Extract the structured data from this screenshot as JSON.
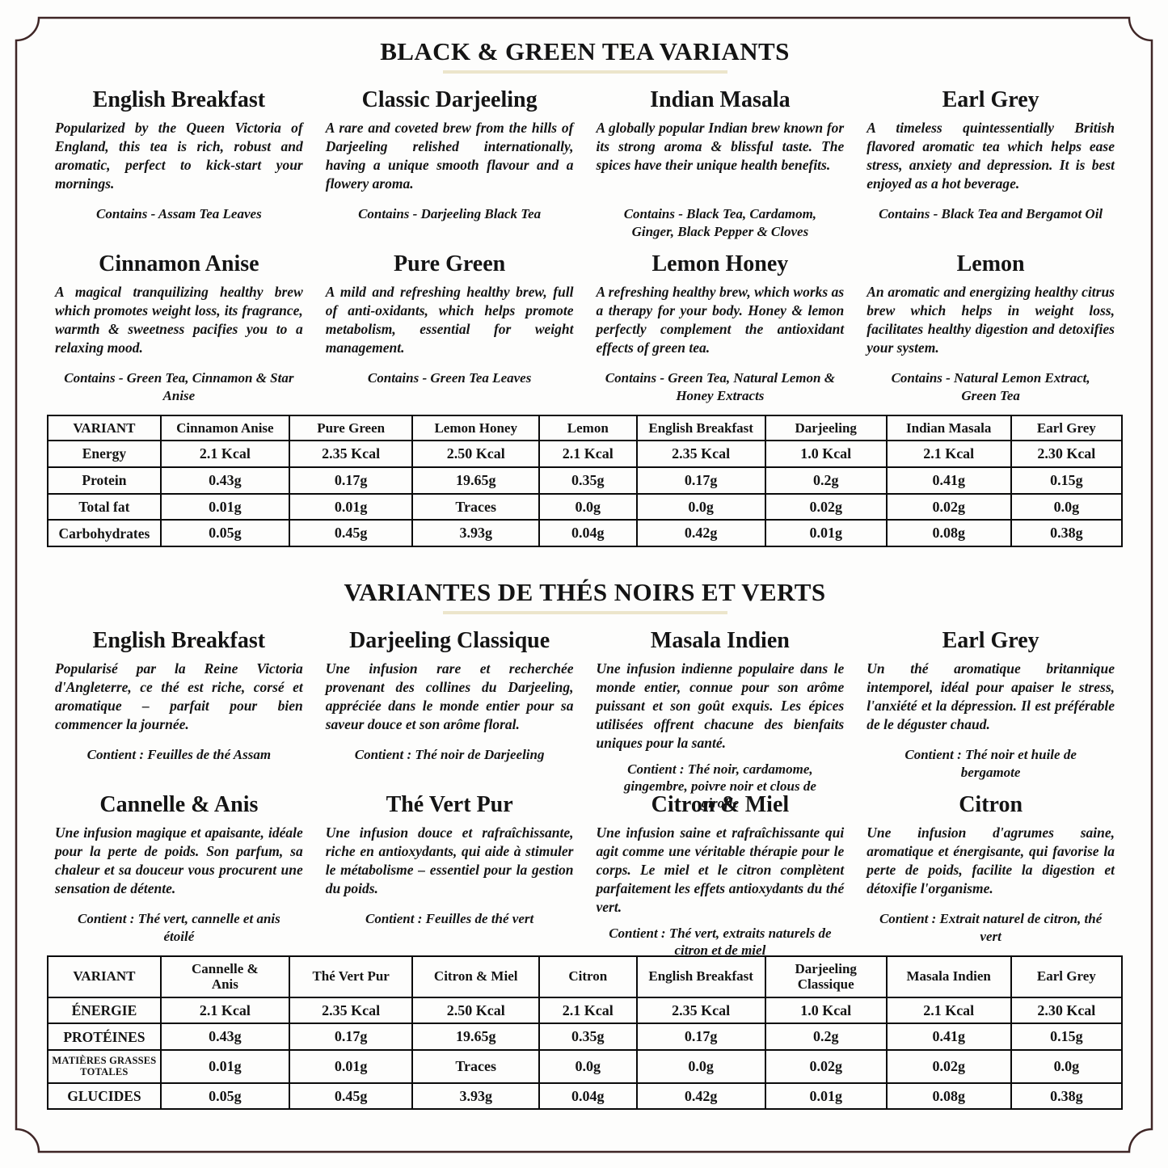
{
  "frame": {
    "border_color": "#3f2626",
    "underline_color": "#ece5cb"
  },
  "en": {
    "title": "BLACK & GREEN TEA VARIANTS",
    "teas": [
      {
        "name": "English Breakfast",
        "description": "Popularized by the Queen Victoria of England, this tea is rich, robust and aromatic, perfect to kick-start your mornings.",
        "contains": "Contains - Assam Tea Leaves"
      },
      {
        "name": "Classic Darjeeling",
        "description": "A rare and coveted brew from the hills of Darjeeling relished internationally, having a unique smooth flavour and a flowery aroma.",
        "contains": "Contains - Darjeeling Black Tea"
      },
      {
        "name": "Indian Masala",
        "description": "A globally popular Indian brew known for its strong aroma & blissful taste. The spices have their unique health benefits.",
        "contains": "Contains - Black Tea, Cardamom, Ginger, Black Pepper & Cloves"
      },
      {
        "name": "Earl Grey",
        "description": "A timeless quintessentially British flavored aromatic tea which helps ease stress, anxiety and depression. It is best enjoyed as a hot beverage.",
        "contains": "Contains - Black Tea and Bergamot Oil"
      },
      {
        "name": "Cinnamon Anise",
        "description": "A magical tranquilizing healthy brew which promotes weight loss, its fragrance, warmth & sweetness pacifies you to a relaxing mood.",
        "contains": "Contains - Green Tea, Cinnamon & Star Anise"
      },
      {
        "name": "Pure Green",
        "description": "A mild and refreshing healthy brew, full of anti-oxidants, which helps promote metabolism, essential for weight management.",
        "contains": "Contains - Green Tea Leaves"
      },
      {
        "name": "Lemon Honey",
        "description": "A refreshing healthy brew, which works as a therapy for your body. Honey & lemon perfectly complement the antioxidant effects of green tea.",
        "contains": "Contains - Green Tea, Natural Lemon & Honey Extracts"
      },
      {
        "name": "Lemon",
        "description": "An aromatic and energizing healthy citrus brew which helps in weight loss, facilitates healthy digestion and detoxifies your system.",
        "contains": "Contains - Natural Lemon Extract, Green Tea"
      }
    ],
    "table": {
      "headers": [
        "VARIANT",
        "Cinnamon Anise",
        "Pure Green",
        "Lemon Honey",
        "Lemon",
        "English Breakfast",
        "Darjeeling",
        "Indian Masala",
        "Earl Grey"
      ],
      "rows": [
        {
          "label": "Energy",
          "values": [
            "2.1 Kcal",
            "2.35 Kcal",
            "2.50 Kcal",
            "2.1 Kcal",
            "2.35 Kcal",
            "1.0 Kcal",
            "2.1 Kcal",
            "2.30 Kcal"
          ]
        },
        {
          "label": "Protein",
          "values": [
            "0.43g",
            "0.17g",
            "19.65g",
            "0.35g",
            "0.17g",
            "0.2g",
            "0.41g",
            "0.15g"
          ]
        },
        {
          "label": "Total fat",
          "values": [
            "0.01g",
            "0.01g",
            "Traces",
            "0.0g",
            "0.0g",
            "0.02g",
            "0.02g",
            "0.0g"
          ]
        },
        {
          "label": "Carbohydrates",
          "values": [
            "0.05g",
            "0.45g",
            "3.93g",
            "0.04g",
            "0.42g",
            "0.01g",
            "0.08g",
            "0.38g"
          ]
        }
      ]
    }
  },
  "fr": {
    "title": "VARIANTES DE THÉS NOIRS ET VERTS",
    "teas": [
      {
        "name": "English Breakfast",
        "description": "Popularisé par la Reine Victoria d'Angleterre, ce thé est riche, corsé et aromatique – parfait pour bien commencer la journée.",
        "contains": "Contient : Feuilles de thé Assam"
      },
      {
        "name": "Darjeeling Classique",
        "description": "Une infusion rare et recherchée provenant des collines du Darjeeling, appréciée dans le monde entier pour sa saveur douce et son arôme floral.",
        "contains": "Contient : Thé noir de Darjeeling"
      },
      {
        "name": "Masala Indien",
        "description": "Une infusion indienne populaire dans le monde entier, connue pour son arôme puissant et son goût exquis. Les épices utilisées offrent chacune des bienfaits uniques pour la santé.",
        "contains": "Contient : Thé noir, cardamome, gingembre, poivre noir et clous de girofle"
      },
      {
        "name": "Earl Grey",
        "description": "Un thé aromatique britannique intemporel, idéal pour apaiser le stress, l'anxiété et la dépression. Il est préférable de le déguster chaud.",
        "contains": "Contient : Thé noir et huile de bergamote"
      },
      {
        "name": "Cannelle & Anis",
        "description": "Une infusion magique et apaisante, idéale pour la perte de poids. Son parfum, sa chaleur et sa douceur vous procurent une sensation de détente.",
        "contains": "Contient : Thé vert, cannelle et anis étoilé"
      },
      {
        "name": "Thé Vert Pur",
        "description": "Une infusion douce et rafraîchissante, riche en antioxydants, qui aide à stimuler le métabolisme – essentiel pour la gestion du poids.",
        "contains": "Contient : Feuilles de thé vert"
      },
      {
        "name": "Citron & Miel",
        "description": "Une infusion saine et rafraîchissante qui agit comme une véritable thérapie pour le corps. Le miel et le citron complètent parfaitement les effets antioxydants du thé vert.",
        "contains": "Contient : Thé vert, extraits naturels de citron et de miel"
      },
      {
        "name": "Citron",
        "description": "Une infusion d'agrumes saine, aromatique et énergisante, qui favorise la perte de poids, facilite la digestion et détoxifie l'organisme.",
        "contains": "Contient : Extrait naturel de citron, thé vert"
      }
    ],
    "table": {
      "headers": [
        "VARIANT",
        "Cannelle &\nAnis",
        "Thé Vert Pur",
        "Citron & Miel",
        "Citron",
        "English Breakfast",
        "Darjeeling\nClassique",
        "Masala Indien",
        "Earl Grey"
      ],
      "rows": [
        {
          "label": "ÉNERGIE",
          "values": [
            "2.1 Kcal",
            "2.35 Kcal",
            "2.50 Kcal",
            "2.1 Kcal",
            "2.35 Kcal",
            "1.0 Kcal",
            "2.1 Kcal",
            "2.30 Kcal"
          ]
        },
        {
          "label": "PROTÉINES",
          "values": [
            "0.43g",
            "0.17g",
            "19.65g",
            "0.35g",
            "0.17g",
            "0.2g",
            "0.41g",
            "0.15g"
          ]
        },
        {
          "label": "MATIÈRES GRASSES\nTOTALES",
          "values": [
            "0.01g",
            "0.01g",
            "Traces",
            "0.0g",
            "0.0g",
            "0.02g",
            "0.02g",
            "0.0g"
          ]
        },
        {
          "label": "GLUCIDES",
          "values": [
            "0.05g",
            "0.45g",
            "3.93g",
            "0.04g",
            "0.42g",
            "0.01g",
            "0.08g",
            "0.38g"
          ]
        }
      ]
    }
  }
}
